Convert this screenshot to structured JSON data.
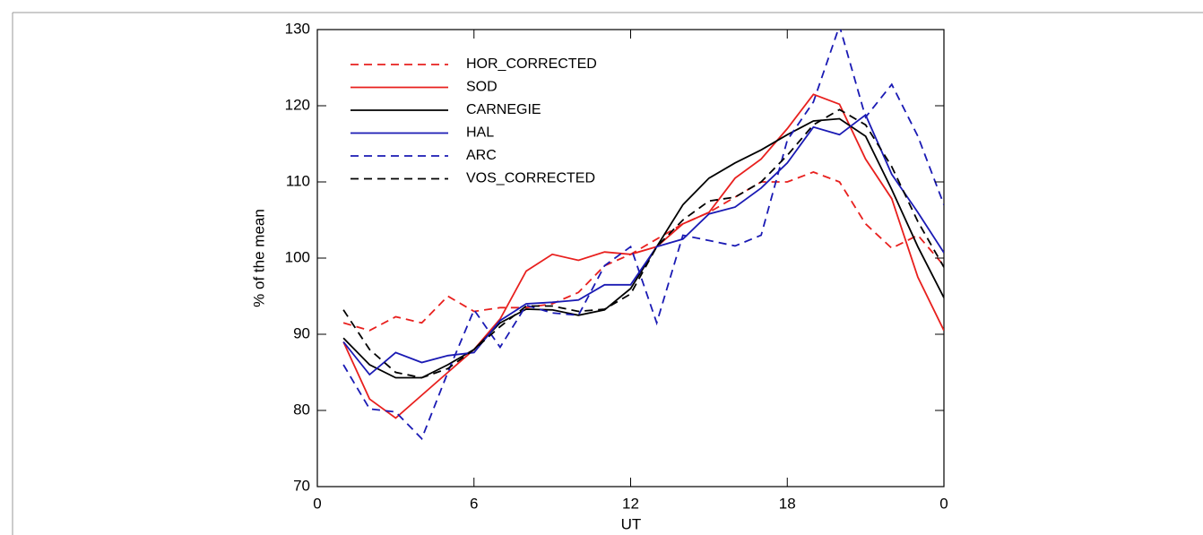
{
  "chart_data": {
    "type": "line",
    "x_label": "UT",
    "y_label": "% of the mean",
    "x": [
      1,
      2,
      3,
      4,
      5,
      6,
      7,
      8,
      9,
      10,
      11,
      12,
      13,
      14,
      15,
      16,
      17,
      18,
      19,
      20,
      21,
      22,
      23,
      24
    ],
    "xlim": [
      0,
      24
    ],
    "xticks": [
      0,
      6,
      12,
      18,
      {
        "value": 24,
        "label": "0"
      }
    ],
    "ylim": [
      70,
      130
    ],
    "yticks": [
      70,
      80,
      90,
      100,
      110,
      120,
      130
    ],
    "legend": "upper left",
    "series": [
      {
        "name": "HOR_CORRECTED",
        "color": "#e8201e",
        "style": "dashed",
        "values": [
          91.5,
          90.5,
          92.3,
          91.5,
          95,
          93,
          93.5,
          93.5,
          94,
          95.5,
          99,
          100.5,
          102.5,
          104.5,
          106,
          108,
          110,
          110,
          111.3,
          110,
          104.5,
          101.3,
          103,
          99
        ]
      },
      {
        "name": "SOD",
        "color": "#e8201e",
        "style": "solid",
        "values": [
          89,
          81.5,
          79,
          82,
          85,
          88,
          92,
          98.3,
          100.5,
          99.7,
          100.8,
          100.5,
          101.5,
          104.5,
          106,
          110.5,
          113,
          117,
          121.5,
          120.2,
          113,
          107.8,
          97.5,
          90.5
        ]
      },
      {
        "name": "CARNEGIE",
        "color": "#000000",
        "style": "solid",
        "values": [
          89.5,
          86,
          84.3,
          84.3,
          86,
          88,
          91.5,
          93.3,
          93.2,
          92.5,
          93.2,
          96,
          101.5,
          107,
          110.5,
          112.5,
          114.2,
          116.2,
          118,
          118.3,
          116,
          109,
          101.5,
          94.8
        ]
      },
      {
        "name": "HAL",
        "color": "#1a1ab4",
        "style": "solid",
        "values": [
          89,
          84.7,
          87.6,
          86.3,
          87.2,
          87.6,
          91.8,
          94,
          94.2,
          94.5,
          96.5,
          96.5,
          101.5,
          102.5,
          105.8,
          106.7,
          109.2,
          112.5,
          117.2,
          116.2,
          118.8,
          111,
          106,
          100.7
        ]
      },
      {
        "name": "ARC",
        "color": "#1a1ab4",
        "style": "dashed",
        "values": [
          86,
          80.2,
          79.8,
          76.3,
          85,
          93.2,
          88.3,
          93.8,
          92.8,
          92.5,
          99,
          101.5,
          91.5,
          103,
          102.3,
          101.6,
          103,
          115.5,
          120.5,
          130.5,
          118.5,
          122.8,
          116,
          107
        ]
      },
      {
        "name": "VOS_CORRECTED",
        "color": "#000000",
        "style": "dashed",
        "values": [
          93.2,
          88,
          85,
          84.3,
          85.5,
          88,
          91,
          93.7,
          93.7,
          93,
          93.3,
          95.3,
          101.5,
          105,
          107.5,
          108,
          110,
          113.5,
          117.5,
          119.5,
          117.5,
          112,
          104.8,
          98.8
        ]
      }
    ]
  }
}
